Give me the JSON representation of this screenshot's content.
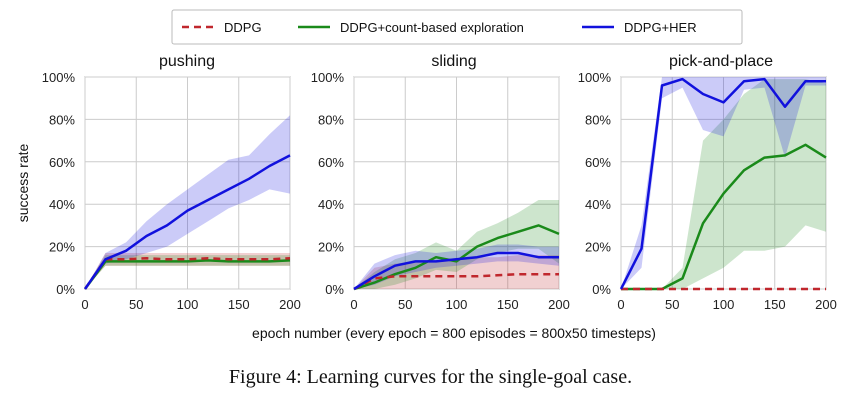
{
  "caption": "Figure 4: Learning curves for the single-goal case.",
  "colors": {
    "ddpg": "#c0272d",
    "count": "#1a8a1a",
    "her": "#1111dd",
    "grid": "#cccccc"
  },
  "chart_data": {
    "type": "line",
    "xlabel": "epoch number (every epoch = 800 episodes = 800x50 timesteps)",
    "ylabel": "success rate",
    "xlim": [
      0,
      200
    ],
    "ylim": [
      0,
      1
    ],
    "xticks": [
      0,
      50,
      100,
      150,
      200
    ],
    "yticks": [
      0,
      0.2,
      0.4,
      0.6,
      0.8,
      1.0
    ],
    "ytick_labels": [
      "0%",
      "20%",
      "40%",
      "60%",
      "80%",
      "100%"
    ],
    "legend": [
      "DDPG",
      "DDPG+count-based exploration",
      "DDPG+HER"
    ],
    "x": [
      0,
      20,
      40,
      60,
      80,
      100,
      120,
      140,
      160,
      180,
      200
    ],
    "panels": [
      {
        "title": "pushing",
        "series": [
          {
            "name": "DDPG",
            "values": [
              0,
              0.14,
              0.14,
              0.145,
              0.14,
              0.14,
              0.145,
              0.14,
              0.14,
              0.14,
              0.145
            ],
            "lower": [
              0,
              0.11,
              0.11,
              0.11,
              0.11,
              0.11,
              0.11,
              0.11,
              0.11,
              0.11,
              0.11
            ],
            "upper": [
              0,
              0.17,
              0.17,
              0.17,
              0.17,
              0.17,
              0.17,
              0.17,
              0.17,
              0.17,
              0.17
            ]
          },
          {
            "name": "DDPG+count-based exploration",
            "values": [
              0,
              0.13,
              0.13,
              0.13,
              0.13,
              0.13,
              0.135,
              0.13,
              0.13,
              0.13,
              0.135
            ],
            "lower": [
              0,
              0.11,
              0.11,
              0.11,
              0.11,
              0.11,
              0.11,
              0.11,
              0.11,
              0.11,
              0.11
            ],
            "upper": [
              0,
              0.16,
              0.16,
              0.16,
              0.16,
              0.16,
              0.16,
              0.16,
              0.16,
              0.16,
              0.16
            ]
          },
          {
            "name": "DDPG+HER",
            "values": [
              0,
              0.14,
              0.18,
              0.25,
              0.3,
              0.37,
              0.42,
              0.47,
              0.52,
              0.58,
              0.63
            ],
            "lower": [
              0,
              0.12,
              0.14,
              0.17,
              0.2,
              0.26,
              0.32,
              0.38,
              0.42,
              0.47,
              0.45
            ],
            "upper": [
              0,
              0.17,
              0.22,
              0.32,
              0.4,
              0.47,
              0.54,
              0.61,
              0.63,
              0.73,
              0.82
            ]
          }
        ]
      },
      {
        "title": "sliding",
        "series": [
          {
            "name": "DDPG",
            "values": [
              0,
              0.05,
              0.06,
              0.06,
              0.06,
              0.06,
              0.06,
              0.065,
              0.07,
              0.07,
              0.07
            ],
            "lower": [
              0,
              0,
              0,
              0,
              0,
              0,
              0,
              0,
              0,
              0,
              0
            ],
            "upper": [
              0,
              0.1,
              0.12,
              0.13,
              0.13,
              0.14,
              0.15,
              0.15,
              0.16,
              0.16,
              0.16
            ]
          },
          {
            "name": "DDPG+count-based exploration",
            "values": [
              0,
              0.03,
              0.07,
              0.1,
              0.15,
              0.13,
              0.2,
              0.24,
              0.27,
              0.3,
              0.26
            ],
            "lower": [
              0,
              0,
              0.02,
              0.05,
              0.09,
              0.08,
              0.14,
              0.17,
              0.19,
              0.19,
              0.12
            ],
            "upper": [
              0,
              0.08,
              0.14,
              0.17,
              0.22,
              0.18,
              0.27,
              0.31,
              0.36,
              0.42,
              0.42
            ]
          },
          {
            "name": "DDPG+HER",
            "values": [
              0,
              0.06,
              0.11,
              0.13,
              0.13,
              0.14,
              0.15,
              0.17,
              0.17,
              0.15,
              0.15
            ],
            "lower": [
              0,
              0.02,
              0.06,
              0.08,
              0.1,
              0.11,
              0.12,
              0.13,
              0.13,
              0.12,
              0.11
            ],
            "upper": [
              0,
              0.12,
              0.16,
              0.18,
              0.17,
              0.18,
              0.19,
              0.21,
              0.21,
              0.2,
              0.2
            ]
          }
        ]
      },
      {
        "title": "pick-and-place",
        "series": [
          {
            "name": "DDPG",
            "values": [
              0,
              0,
              0,
              0,
              0,
              0,
              0,
              0,
              0,
              0,
              0
            ],
            "lower": [
              0,
              0,
              0,
              0,
              0,
              0,
              0,
              0,
              0,
              0,
              0
            ],
            "upper": [
              0,
              0,
              0,
              0,
              0,
              0,
              0,
              0,
              0,
              0,
              0
            ]
          },
          {
            "name": "DDPG+count-based exploration",
            "values": [
              0,
              0,
              0,
              0.05,
              0.31,
              0.45,
              0.56,
              0.62,
              0.63,
              0.68,
              0.62
            ],
            "lower": [
              0,
              0,
              0,
              0,
              0.05,
              0.1,
              0.18,
              0.18,
              0.2,
              0.3,
              0.27
            ],
            "upper": [
              0,
              0,
              0,
              0.1,
              0.7,
              0.8,
              0.92,
              0.99,
              0.99,
              0.99,
              0.97
            ]
          },
          {
            "name": "DDPG+HER",
            "values": [
              0,
              0.19,
              0.96,
              0.99,
              0.92,
              0.88,
              0.98,
              0.99,
              0.86,
              0.98,
              0.98
            ],
            "lower": [
              0,
              0.1,
              0.9,
              0.95,
              0.75,
              0.72,
              0.94,
              0.95,
              0.62,
              0.96,
              0.96
            ],
            "upper": [
              0,
              0.3,
              1.0,
              1.0,
              1.0,
              1.0,
              1.0,
              1.0,
              1.0,
              1.0,
              1.0
            ]
          }
        ]
      }
    ]
  }
}
